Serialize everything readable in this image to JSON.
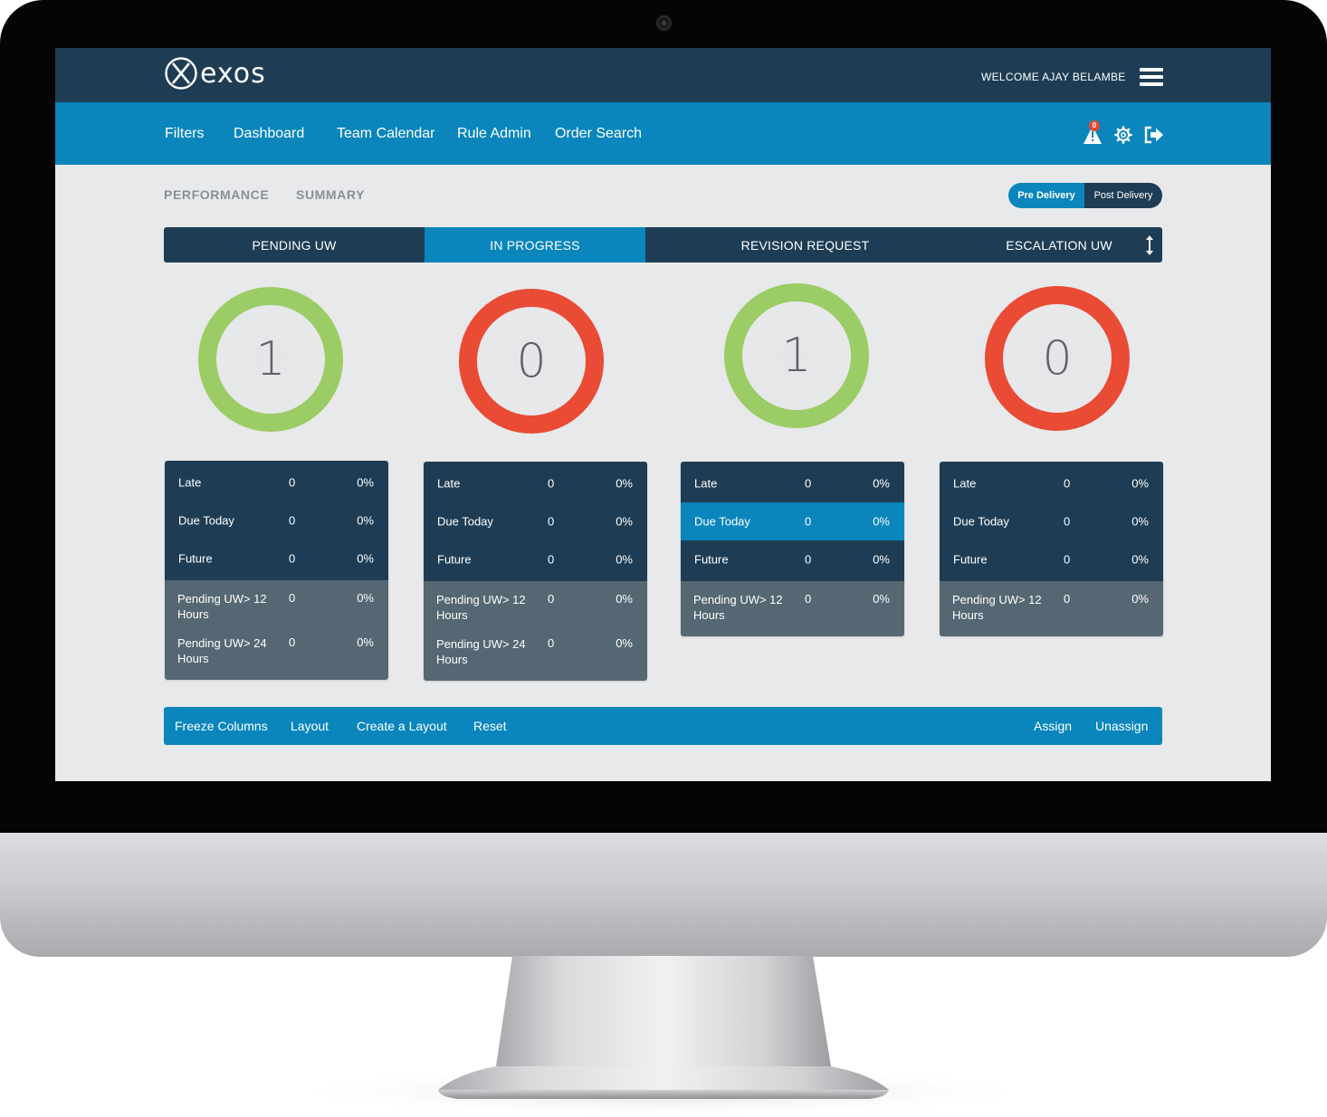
{
  "brand": {
    "name": "exos"
  },
  "header": {
    "welcome": "WELCOME AJAY BELAMBE"
  },
  "nav": {
    "items": [
      "Filters",
      "Dashboard",
      "Team Calendar",
      "Rule Admin",
      "Order Search"
    ],
    "notification_count": "0"
  },
  "subtabs": [
    "PERFORMANCE",
    "SUMMARY"
  ],
  "delivery_toggle": {
    "selected": "Pre Delivery",
    "other": "Post Delivery"
  },
  "status_tabs": [
    {
      "label": "PENDING UW",
      "active": false
    },
    {
      "label": "IN PROGRESS",
      "active": true
    },
    {
      "label": "REVISION REQUEST",
      "active": false
    },
    {
      "label": "ESCALATION UW",
      "active": false
    }
  ],
  "panels": [
    {
      "count": "1",
      "ring_color": "#9ccc65",
      "rows": [
        {
          "label": "Late",
          "count": "0",
          "pct": "0%"
        },
        {
          "label": "Due Today",
          "count": "0",
          "pct": "0%"
        },
        {
          "label": "Future",
          "count": "0",
          "pct": "0%"
        }
      ],
      "pending": [
        {
          "label": "Pending UW> 12 Hours",
          "count": "0",
          "pct": "0%"
        },
        {
          "label": "Pending UW> 24 Hours",
          "count": "0",
          "pct": "0%"
        }
      ]
    },
    {
      "count": "0",
      "ring_color": "#e94b35",
      "rows": [
        {
          "label": "Late",
          "count": "0",
          "pct": "0%"
        },
        {
          "label": "Due Today",
          "count": "0",
          "pct": "0%"
        },
        {
          "label": "Future",
          "count": "0",
          "pct": "0%"
        }
      ],
      "pending": [
        {
          "label": "Pending UW> 12 Hours",
          "count": "0",
          "pct": "0%"
        },
        {
          "label": "Pending UW> 24 Hours",
          "count": "0",
          "pct": "0%"
        }
      ]
    },
    {
      "count": "1",
      "ring_color": "#9ccc65",
      "rows": [
        {
          "label": "Late",
          "count": "0",
          "pct": "0%"
        },
        {
          "label": "Due Today",
          "count": "0",
          "pct": "0%"
        },
        {
          "label": "Future",
          "count": "0",
          "pct": "0%"
        }
      ],
      "pending": [
        {
          "label": "Pending UW> 12 Hours",
          "count": "0",
          "pct": "0%"
        }
      ]
    },
    {
      "count": "0",
      "ring_color": "#e94b35",
      "rows": [
        {
          "label": "Late",
          "count": "0",
          "pct": "0%"
        },
        {
          "label": "Due Today",
          "count": "0",
          "pct": "0%"
        },
        {
          "label": "Future",
          "count": "0",
          "pct": "0%"
        }
      ],
      "pending": [
        {
          "label": "Pending UW> 12 Hours",
          "count": "0",
          "pct": "0%"
        }
      ]
    }
  ],
  "actions": {
    "left": [
      "Freeze Columns",
      "Layout",
      "Create a Layout",
      "Reset"
    ],
    "right": [
      "Assign",
      "Unassign"
    ]
  },
  "colors": {
    "header_dark": "#1e3d55",
    "accent_blue": "#0a86bc",
    "ok_green": "#9ccc65",
    "alert_red": "#e94b35"
  }
}
